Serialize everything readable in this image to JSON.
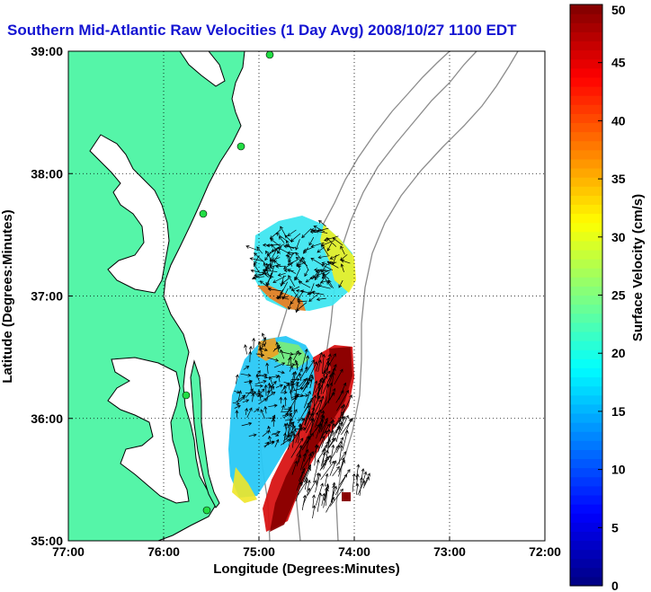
{
  "chart_data": {
    "type": "heatmap",
    "title": "Southern Mid-Atlantic Raw Velocities (1 Day Avg) 2008/10/27 1100 EDT",
    "xlabel": "Longitude (Degrees:Minutes)",
    "ylabel": "Latitude (Degrees:Minutes)",
    "x_ticks": [
      "77:00",
      "76:00",
      "75:00",
      "74:00",
      "73:00",
      "72:00"
    ],
    "y_ticks": [
      "39:00",
      "38:00",
      "37:00",
      "36:00",
      "35:00"
    ],
    "xlim": [
      -77,
      -72
    ],
    "ylim": [
      35,
      39
    ],
    "grid": true,
    "colorbar": {
      "label": "Surface Velocity (cm/s)",
      "range": [
        0,
        50
      ],
      "ticks": [
        "0",
        "5",
        "10",
        "15",
        "20",
        "25",
        "30",
        "35",
        "40",
        "45",
        "50"
      ]
    },
    "colors": {
      "land": "#55f5a8",
      "coastline": "#000000",
      "bathymetry": "#8c8c8c",
      "title": "#1414d2"
    }
  }
}
